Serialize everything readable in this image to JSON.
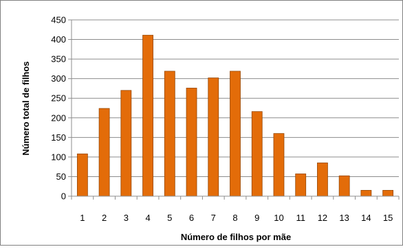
{
  "chart_data": {
    "type": "bar",
    "title": "",
    "xlabel": "Número de filhos por mãe",
    "ylabel": "Número total de filhos",
    "categories": [
      "1",
      "2",
      "3",
      "4",
      "5",
      "6",
      "7",
      "8",
      "9",
      "10",
      "11",
      "12",
      "13",
      "14",
      "15"
    ],
    "values": [
      108,
      224,
      270,
      411,
      319,
      276,
      302,
      319,
      216,
      160,
      57,
      85,
      52,
      15,
      15
    ],
    "ylim": [
      0,
      450
    ],
    "yticks": [
      0,
      50,
      100,
      150,
      200,
      250,
      300,
      350,
      400,
      450
    ],
    "grid": true,
    "legend": "none",
    "bar_color": "#E36C09",
    "bar_edge_color": "#974806"
  }
}
